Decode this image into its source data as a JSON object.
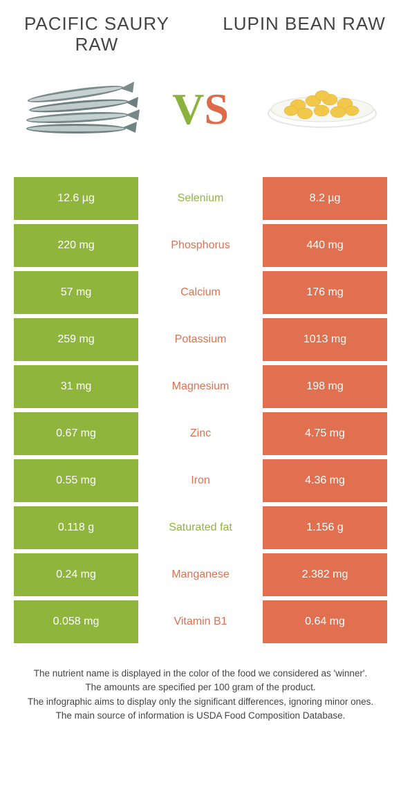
{
  "colors": {
    "green": "#8fb53d",
    "orange": "#e0704f",
    "green_vs": "#8bb23c",
    "orange_vs": "#dd6b4a"
  },
  "food_left": {
    "name": "PACIFIC SAURY RAW"
  },
  "food_right": {
    "name": "LUPIN BEAN RAW"
  },
  "vs_label": {
    "v": "V",
    "s": "S"
  },
  "rows": [
    {
      "left": "12.6 µg",
      "label": "Selenium",
      "right": "8.2 µg",
      "winner": "left"
    },
    {
      "left": "220 mg",
      "label": "Phosphorus",
      "right": "440 mg",
      "winner": "right"
    },
    {
      "left": "57 mg",
      "label": "Calcium",
      "right": "176 mg",
      "winner": "right"
    },
    {
      "left": "259 mg",
      "label": "Potassium",
      "right": "1013 mg",
      "winner": "right"
    },
    {
      "left": "31 mg",
      "label": "Magnesium",
      "right": "198 mg",
      "winner": "right"
    },
    {
      "left": "0.67 mg",
      "label": "Zinc",
      "right": "4.75 mg",
      "winner": "right"
    },
    {
      "left": "0.55 mg",
      "label": "Iron",
      "right": "4.36 mg",
      "winner": "right"
    },
    {
      "left": "0.118 g",
      "label": "Saturated fat",
      "right": "1.156 g",
      "winner": "left"
    },
    {
      "left": "0.24 mg",
      "label": "Manganese",
      "right": "2.382 mg",
      "winner": "right"
    },
    {
      "left": "0.058 mg",
      "label": "Vitamin B1",
      "right": "0.64 mg",
      "winner": "right"
    }
  ],
  "footnotes": [
    "The nutrient name is displayed in the color of the food we considered as 'winner'.",
    "The amounts are specified per 100 gram of the product.",
    "The infographic aims to display only the significant differences, ignoring minor ones.",
    "The main source of information is USDA Food Composition Database."
  ]
}
